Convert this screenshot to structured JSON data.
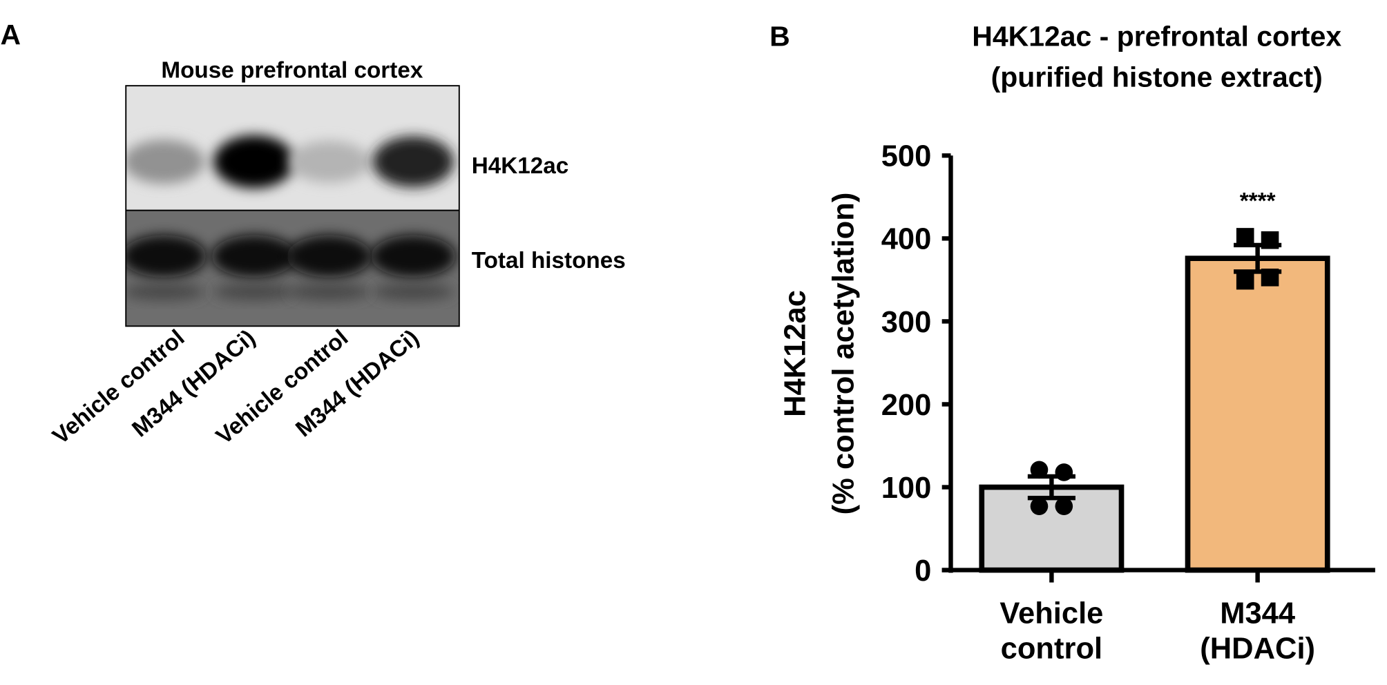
{
  "panel_a": {
    "label": "A",
    "title": "Mouse prefrontal cortex",
    "band_labels": [
      "H4K12ac",
      "Total histones"
    ],
    "lane_labels": [
      "Vehicle control",
      "M344 (HDACi)",
      "Vehicle control",
      "M344 (HDACi)"
    ],
    "h4k12ac_band_intensity": [
      0.35,
      1.0,
      0.2,
      0.85
    ],
    "total_histone_band_intensity": [
      0.9,
      0.85,
      0.85,
      0.88
    ]
  },
  "panel_b": {
    "label": "B"
  },
  "chart_data": {
    "type": "bar",
    "title": "H4K12ac - prefrontal cortex",
    "subtitle": "(purified histone extract)",
    "ylabel": "H4K12ac",
    "ylabel2": "(% control acetylation)",
    "ylim": [
      0,
      500
    ],
    "yticks": [
      "0",
      "100",
      "200",
      "300",
      "400",
      "500"
    ],
    "grid": false,
    "categories": [
      {
        "line1": "Vehicle",
        "line2": "control"
      },
      {
        "line1": "M344",
        "line2": "(HDACi)"
      }
    ],
    "values": [
      100,
      376
    ],
    "sem": [
      13,
      16
    ],
    "points": [
      [
        121,
        118,
        77,
        77
      ],
      [
        402,
        398,
        349,
        353
      ]
    ],
    "point_markers": [
      "circle",
      "square"
    ],
    "colors": [
      "#d4d4d4",
      "#f2b87c"
    ],
    "annotations": [
      {
        "category": 1,
        "text": "****"
      }
    ]
  }
}
